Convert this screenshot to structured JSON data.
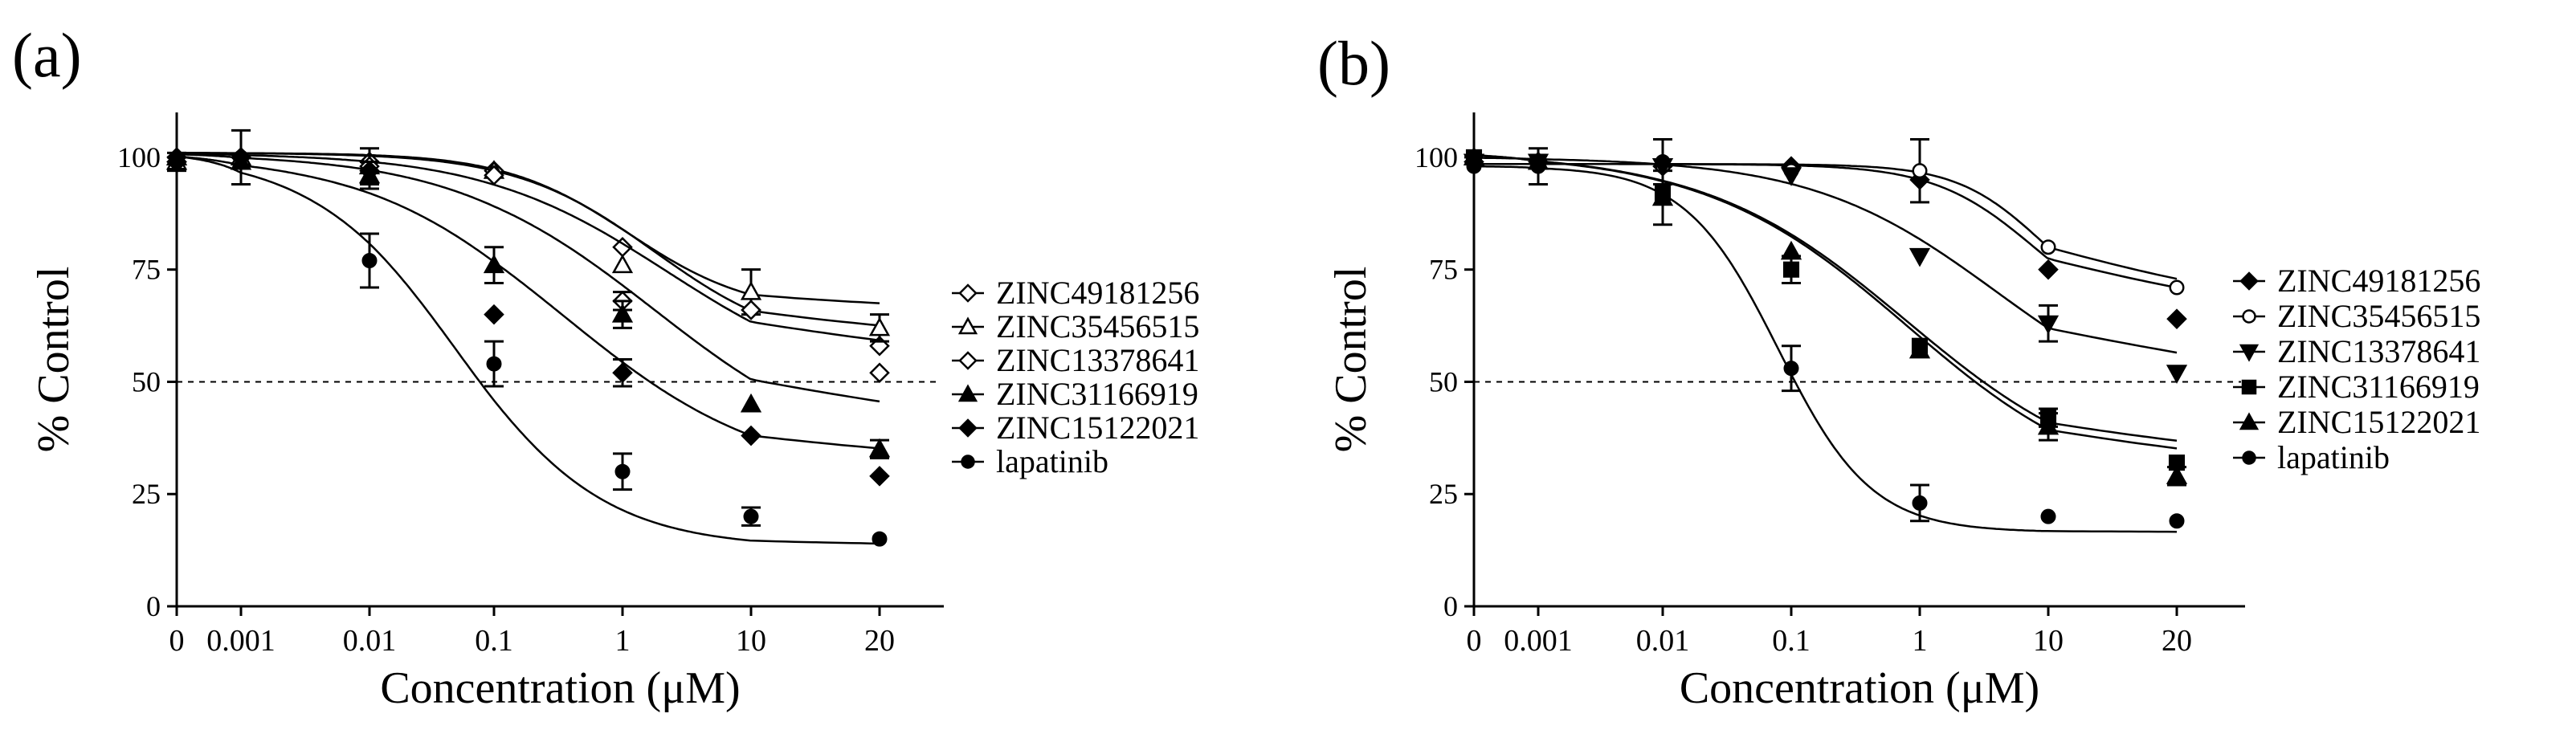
{
  "chart_data": [
    {
      "panel_label": "(a)",
      "type": "scatter",
      "title": "",
      "xlabel": "Concentration (μM)",
      "ylabel": "% Control",
      "x_ticks": [
        "0",
        "0.001",
        "0.01",
        "0.1",
        "1",
        "10",
        "20"
      ],
      "y_ticks": [
        "0",
        "25",
        "50",
        "75",
        "100"
      ],
      "ylim": [
        0,
        110
      ],
      "reference_line": {
        "y": 50,
        "style": "dashed"
      },
      "legend_position": "right",
      "series": [
        {
          "name": "ZINC49181256",
          "marker": "diamond-open",
          "points": [
            [
              "0",
              99
            ],
            [
              "0.001",
              100
            ],
            [
              "0.01",
              99
            ],
            [
              "0.1",
              97
            ],
            [
              "1",
              80
            ],
            [
              "10",
              66
            ],
            [
              "20",
              58
            ]
          ],
          "errors": [
            0,
            0,
            0,
            0,
            0,
            0,
            0
          ],
          "fit": {
            "top": 101,
            "bottom": 65,
            "log_ec50": 0.05,
            "hill": 0.9
          }
        },
        {
          "name": "ZINC35456515",
          "marker": "triangle-open",
          "points": [
            [
              "0",
              99
            ],
            [
              "0.001",
              100
            ],
            [
              "0.01",
              98
            ],
            [
              "0.1",
              97
            ],
            [
              "1",
              76
            ],
            [
              "10",
              70
            ],
            [
              "20",
              62
            ]
          ],
          "errors": [
            2,
            6,
            4,
            0,
            0,
            5,
            3
          ],
          "fit": {
            "top": 101,
            "bottom": 57,
            "log_ec50": 0.25,
            "hill": 0.8
          }
        },
        {
          "name": "ZINC13378641",
          "marker": "diamond-open",
          "points": [
            [
              "0",
              99
            ],
            [
              "0.001",
              100
            ],
            [
              "0.01",
              98
            ],
            [
              "0.1",
              96
            ],
            [
              "1",
              68
            ],
            [
              "10",
              66
            ],
            [
              "20",
              52
            ]
          ],
          "errors": [
            0,
            0,
            0,
            0,
            2,
            0,
            0
          ],
          "fit": {
            "top": 101,
            "bottom": 48,
            "log_ec50": 0.35,
            "hill": 0.6
          }
        },
        {
          "name": "ZINC31166919",
          "marker": "triangle-filled",
          "points": [
            [
              "0",
              100
            ],
            [
              "0.001",
              99
            ],
            [
              "0.01",
              96
            ],
            [
              "0.1",
              76
            ],
            [
              "1",
              65
            ],
            [
              "10",
              45
            ],
            [
              "20",
              35
            ]
          ],
          "errors": [
            0,
            0,
            3,
            4,
            3,
            0,
            2
          ],
          "fit": {
            "top": 101,
            "bottom": 31,
            "log_ec50": 0.25,
            "hill": 0.55
          }
        },
        {
          "name": "ZINC15122021",
          "marker": "diamond-filled",
          "points": [
            [
              "0",
              100
            ],
            [
              "0.001",
              100
            ],
            [
              "0.01",
              97
            ],
            [
              "0.1",
              65
            ],
            [
              "1",
              52
            ],
            [
              "10",
              38
            ],
            [
              "20",
              29
            ]
          ],
          "errors": [
            0,
            0,
            0,
            0,
            3,
            0,
            0
          ],
          "fit": {
            "top": 101,
            "bottom": 28,
            "log_ec50": -0.45,
            "hill": 0.55
          }
        },
        {
          "name": "lapatinib",
          "marker": "circle-filled",
          "points": [
            [
              "0",
              99
            ],
            [
              "0.001",
              100
            ],
            [
              "0.01",
              77
            ],
            [
              "0.1",
              54
            ],
            [
              "1",
              30
            ],
            [
              "10",
              20
            ],
            [
              "20",
              15
            ]
          ],
          "errors": [
            0,
            0,
            6,
            5,
            4,
            2,
            0
          ],
          "fit": {
            "top": 101,
            "bottom": 13,
            "log_ec50": -1.3,
            "hill": 0.75
          }
        }
      ]
    },
    {
      "panel_label": "(b)",
      "type": "scatter",
      "title": "",
      "xlabel": "Concentration (μM)",
      "ylabel": "% Control",
      "x_ticks": [
        "0",
        "0.001",
        "0.01",
        "0.1",
        "1",
        "10",
        "20"
      ],
      "y_ticks": [
        "0",
        "25",
        "50",
        "75",
        "100"
      ],
      "ylim": [
        0,
        110
      ],
      "reference_line": {
        "y": 50,
        "style": "dashed"
      },
      "legend_position": "right",
      "series": [
        {
          "name": "ZINC49181256",
          "marker": "diamond-filled",
          "points": [
            [
              "0",
              99
            ],
            [
              "0.001",
              99
            ],
            [
              "0.01",
              98
            ],
            [
              "0.1",
              98
            ],
            [
              "1",
              95
            ],
            [
              "10",
              75
            ],
            [
              "20",
              64
            ]
          ],
          "errors": [
            0,
            0,
            0,
            0,
            0,
            0,
            0
          ],
          "fit": {
            "top": 98.5,
            "bottom": 61,
            "log_ec50": 0.9,
            "hill": 1.1
          }
        },
        {
          "name": "ZINC35456515",
          "marker": "circle-open",
          "points": [
            [
              "0",
              99
            ],
            [
              "0.001",
              99
            ],
            [
              "0.01",
              98
            ],
            [
              "0.1",
              97
            ],
            [
              "1",
              97
            ],
            [
              "10",
              80
            ],
            [
              "20",
              71
            ]
          ],
          "errors": [
            0,
            0,
            0,
            0,
            7,
            0,
            0
          ],
          "fit": {
            "top": 98.5,
            "bottom": 64,
            "log_ec50": 0.95,
            "hill": 1.3
          }
        },
        {
          "name": "ZINC13378641",
          "marker": "triangle-down-filled",
          "points": [
            [
              "0",
              99
            ],
            [
              "0.001",
              99
            ],
            [
              "0.01",
              98
            ],
            [
              "0.1",
              96
            ],
            [
              "1",
              78
            ],
            [
              "10",
              63
            ],
            [
              "20",
              52
            ]
          ],
          "errors": [
            0,
            0,
            0,
            0,
            0,
            4,
            0
          ],
          "fit": {
            "top": 100,
            "bottom": 40,
            "log_ec50": 0.6,
            "hill": 0.6
          }
        },
        {
          "name": "ZINC31166919",
          "marker": "square-filled",
          "points": [
            [
              "0",
              100
            ],
            [
              "0.001",
              99
            ],
            [
              "0.01",
              92
            ],
            [
              "0.1",
              75
            ],
            [
              "1",
              58
            ],
            [
              "10",
              42
            ],
            [
              "20",
              32
            ]
          ],
          "errors": [
            0,
            0,
            0,
            3,
            0,
            2,
            0
          ],
          "fit": {
            "top": 101,
            "bottom": 26,
            "log_ec50": -0.1,
            "hill": 0.55
          }
        },
        {
          "name": "ZINC15122021",
          "marker": "triangle-filled",
          "points": [
            [
              "0",
              100
            ],
            [
              "0.001",
              99
            ],
            [
              "0.01",
              91
            ],
            [
              "0.1",
              79
            ],
            [
              "1",
              57
            ],
            [
              "10",
              40
            ],
            [
              "20",
              29
            ]
          ],
          "errors": [
            0,
            0,
            6,
            0,
            0,
            3,
            2
          ],
          "fit": {
            "top": 101,
            "bottom": 24,
            "log_ec50": -0.1,
            "hill": 0.55
          }
        },
        {
          "name": "lapatinib",
          "marker": "circle-filled",
          "points": [
            [
              "0",
              98
            ],
            [
              "0.001",
              98
            ],
            [
              "0.01",
              99
            ],
            [
              "0.1",
              53
            ],
            [
              "1",
              23
            ],
            [
              "10",
              20
            ],
            [
              "20",
              19
            ]
          ],
          "errors": [
            0,
            4,
            5,
            5,
            4,
            0,
            0
          ],
          "fit": {
            "top": 98,
            "bottom": 16.5,
            "log_ec50": -1.1,
            "hill": 1.2
          }
        }
      ]
    }
  ]
}
